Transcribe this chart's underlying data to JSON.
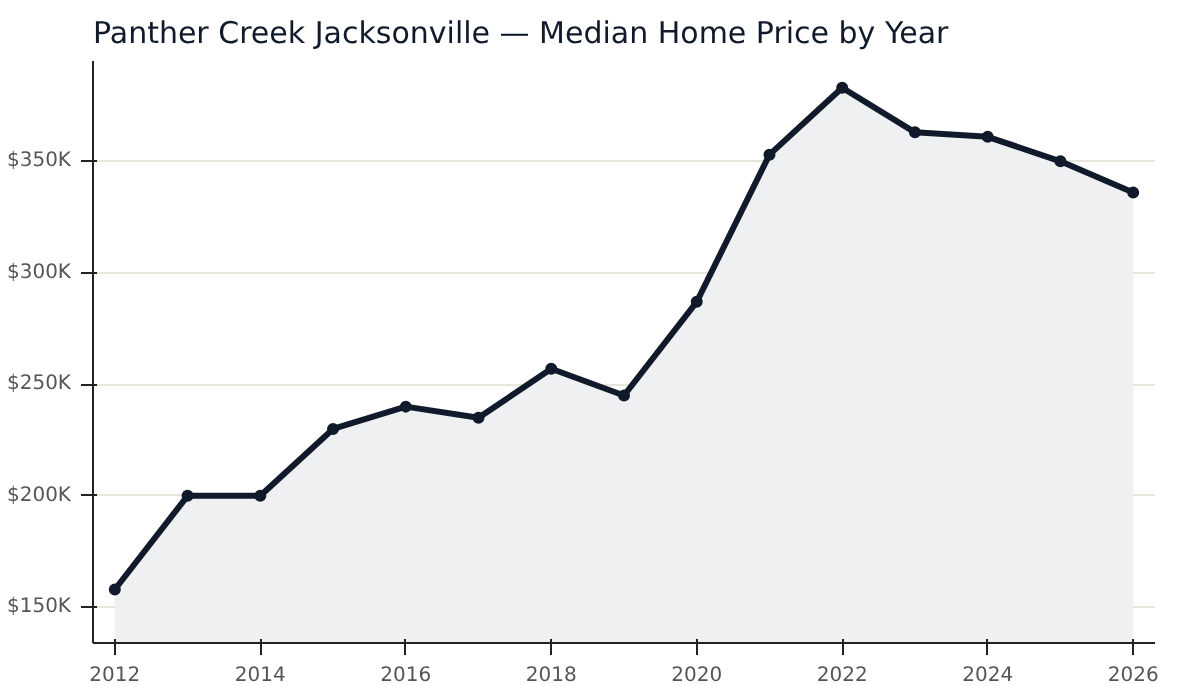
{
  "chart_data": {
    "type": "area",
    "title": "Panther Creek Jacksonville — Median Home Price by Year",
    "x": [
      2012,
      2013,
      2014,
      2015,
      2016,
      2017,
      2018,
      2019,
      2020,
      2021,
      2022,
      2023,
      2024,
      2025,
      2026
    ],
    "series": [
      {
        "color": "#111a2b",
        "values": [
          158000,
          200000,
          200000,
          230000,
          240000,
          235000,
          257000,
          245000,
          287000,
          353000,
          383000,
          363000,
          361000,
          350000,
          336000
        ]
      }
    ],
    "xlim": [
      2011.7,
      2026.3
    ],
    "xticks": [
      2012,
      2014,
      2016,
      2018,
      2020,
      2022,
      2024,
      2026
    ],
    "ylim": [
      134000,
      395000
    ],
    "yticks": [
      {
        "value": 150000,
        "label": "$150K"
      },
      {
        "value": 200000,
        "label": "$200K"
      },
      {
        "value": 250000,
        "label": "$250K"
      },
      {
        "value": 300000,
        "label": "$300K"
      },
      {
        "value": 350000,
        "label": "$350K"
      }
    ],
    "grid": "y",
    "marker": "circle",
    "line_style": "solid"
  }
}
